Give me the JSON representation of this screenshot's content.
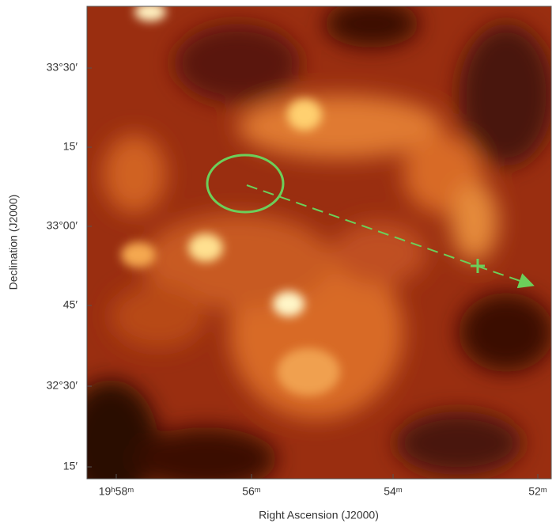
{
  "figure": {
    "x_axis": {
      "label": "Right Ascension (J2000)",
      "ticks": [
        "19ʰ58ᵐ",
        "56ᵐ",
        "54ᵐ",
        "52ᵐ"
      ]
    },
    "y_axis": {
      "label": "Declination (J2000)",
      "ticks": [
        "33°30′",
        "15′",
        "33°00′",
        "45′",
        "32°30′",
        "15′"
      ]
    }
  }
}
